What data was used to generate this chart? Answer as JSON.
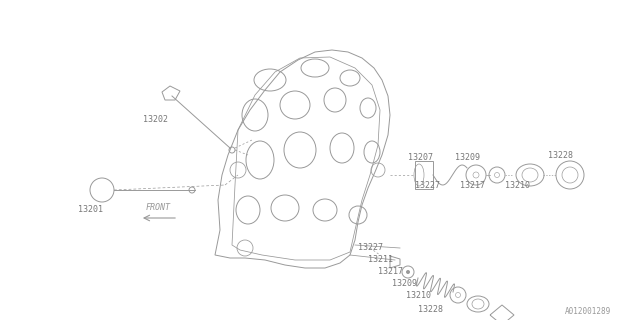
{
  "bg_color": "#ffffff",
  "line_color": "#999999",
  "text_color": "#777777",
  "watermark": "A012001289",
  "front_label": "FRONT",
  "figw": 6.4,
  "figh": 3.2,
  "dpi": 100
}
